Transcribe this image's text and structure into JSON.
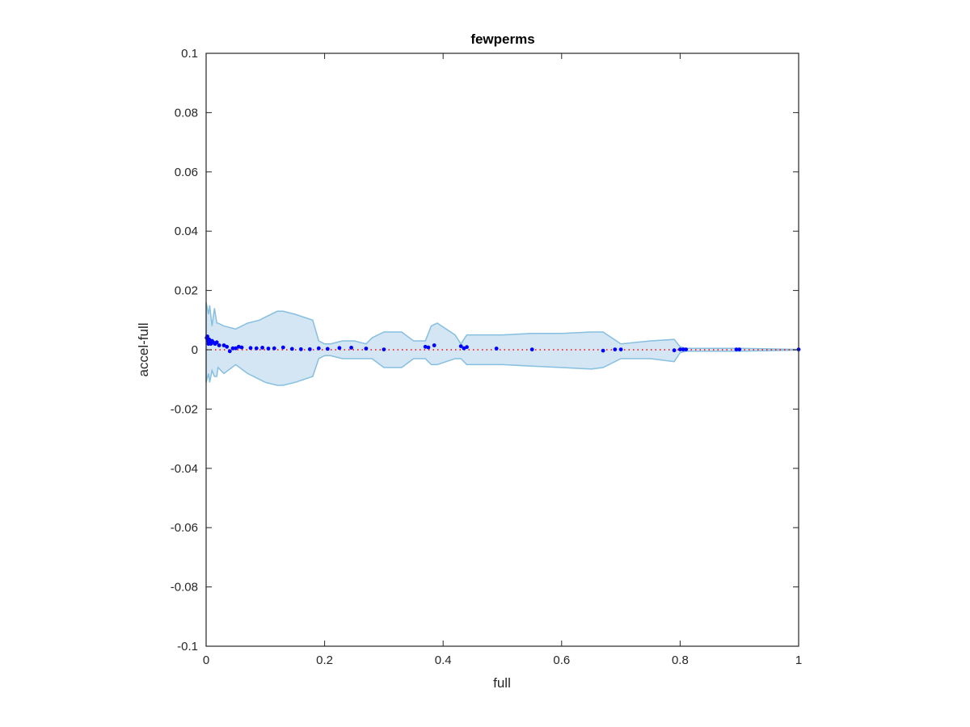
{
  "chart_data": {
    "type": "scatter",
    "title": "fewperms",
    "xlabel": "full",
    "ylabel": "accel-full",
    "xlim": [
      0,
      1
    ],
    "ylim": [
      -0.1,
      0.1
    ],
    "x_ticks": [
      0,
      0.2,
      0.4,
      0.6,
      0.8,
      1
    ],
    "x_tick_labels": [
      "0",
      "0.2",
      "0.4",
      "0.6",
      "0.8",
      "1"
    ],
    "y_ticks": [
      -0.1,
      -0.08,
      -0.06,
      -0.04,
      -0.02,
      0,
      0.02,
      0.04,
      0.06,
      0.08,
      0.1
    ],
    "y_tick_labels": [
      "-0.1",
      "-0.08",
      "-0.06",
      "-0.04",
      "-0.02",
      "0",
      "0.02",
      "0.04",
      "0.06",
      "0.08",
      "0.1"
    ],
    "grid": false,
    "colors": {
      "points": "#0000ff",
      "reference_line": "#ff0000",
      "band_fill": "#d4e6f3",
      "band_edge": "#86bfe0",
      "axes": "#262626"
    },
    "reference_line": {
      "y": 0,
      "style": "dotted"
    },
    "band": {
      "x": [
        0,
        0.004,
        0.006,
        0.01,
        0.014,
        0.018,
        0.02,
        0.03,
        0.05,
        0.07,
        0.09,
        0.1,
        0.12,
        0.13,
        0.15,
        0.18,
        0.19,
        0.2,
        0.21,
        0.23,
        0.25,
        0.27,
        0.28,
        0.3,
        0.33,
        0.35,
        0.37,
        0.38,
        0.39,
        0.42,
        0.43,
        0.44,
        0.5,
        0.55,
        0.6,
        0.65,
        0.67,
        0.7,
        0.75,
        0.79,
        0.8,
        0.81,
        0.9,
        0.95,
        1
      ],
      "upper": [
        0.016,
        0.012,
        0.015,
        0.008,
        0.014,
        0.009,
        0.009,
        0.008,
        0.007,
        0.009,
        0.01,
        0.011,
        0.013,
        0.013,
        0.012,
        0.01,
        0.003,
        0.002,
        0.002,
        0.003,
        0.003,
        0.002,
        0.004,
        0.006,
        0.006,
        0.003,
        0.003,
        0.008,
        0.009,
        0.005,
        0.002,
        0.005,
        0.005,
        0.0055,
        0.0055,
        0.006,
        0.006,
        0.002,
        0.003,
        0.0035,
        0.001,
        0.0005,
        0.0005,
        0.0003,
        0.0001
      ],
      "lower": [
        -0.011,
        -0.008,
        -0.011,
        -0.007,
        -0.009,
        -0.009,
        -0.006,
        -0.008,
        -0.005,
        -0.008,
        -0.01,
        -0.011,
        -0.012,
        -0.012,
        -0.011,
        -0.009,
        -0.003,
        -0.002,
        -0.002,
        -0.003,
        -0.003,
        -0.003,
        -0.003,
        -0.006,
        -0.006,
        -0.003,
        -0.003,
        -0.005,
        -0.005,
        -0.003,
        -0.003,
        -0.005,
        -0.005,
        -0.0055,
        -0.006,
        -0.0065,
        -0.006,
        -0.003,
        -0.003,
        -0.004,
        -0.001,
        -0.0005,
        -0.0005,
        -0.0003,
        -0.0001
      ]
    },
    "points": {
      "x": [
        0.001,
        0.002,
        0.003,
        0.004,
        0.005,
        0.006,
        0.008,
        0.01,
        0.012,
        0.015,
        0.018,
        0.022,
        0.03,
        0.035,
        0.04,
        0.045,
        0.05,
        0.055,
        0.06,
        0.075,
        0.085,
        0.095,
        0.105,
        0.115,
        0.13,
        0.145,
        0.16,
        0.175,
        0.19,
        0.205,
        0.225,
        0.245,
        0.27,
        0.3,
        0.37,
        0.375,
        0.385,
        0.43,
        0.435,
        0.44,
        0.49,
        0.55,
        0.67,
        0.69,
        0.7,
        0.79,
        0.8,
        0.805,
        0.81,
        0.895,
        0.9,
        1
      ],
      "y": [
        0.004,
        0.0045,
        0.003,
        0.002,
        0.0035,
        0.0025,
        0.002,
        0.003,
        0.0025,
        0.002,
        0.0025,
        0.0015,
        0.0015,
        0.001,
        -0.0005,
        0.0005,
        0.0005,
        0.001,
        0.0008,
        0.0006,
        0.0005,
        0.0007,
        0.0004,
        0.0005,
        0.0008,
        0.0003,
        0.0002,
        0.0002,
        0.0005,
        0.0003,
        0.0006,
        0.0007,
        0.0004,
        0.0001,
        0.001,
        0.0008,
        0.0015,
        0.0012,
        0.0005,
        0.0009,
        0.0004,
        0.0001,
        -0.0003,
        0.0001,
        0.0001,
        -0.0002,
        0.0001,
        0.0001,
        0.0001,
        0.0001,
        0.0001,
        0.0001
      ]
    }
  }
}
